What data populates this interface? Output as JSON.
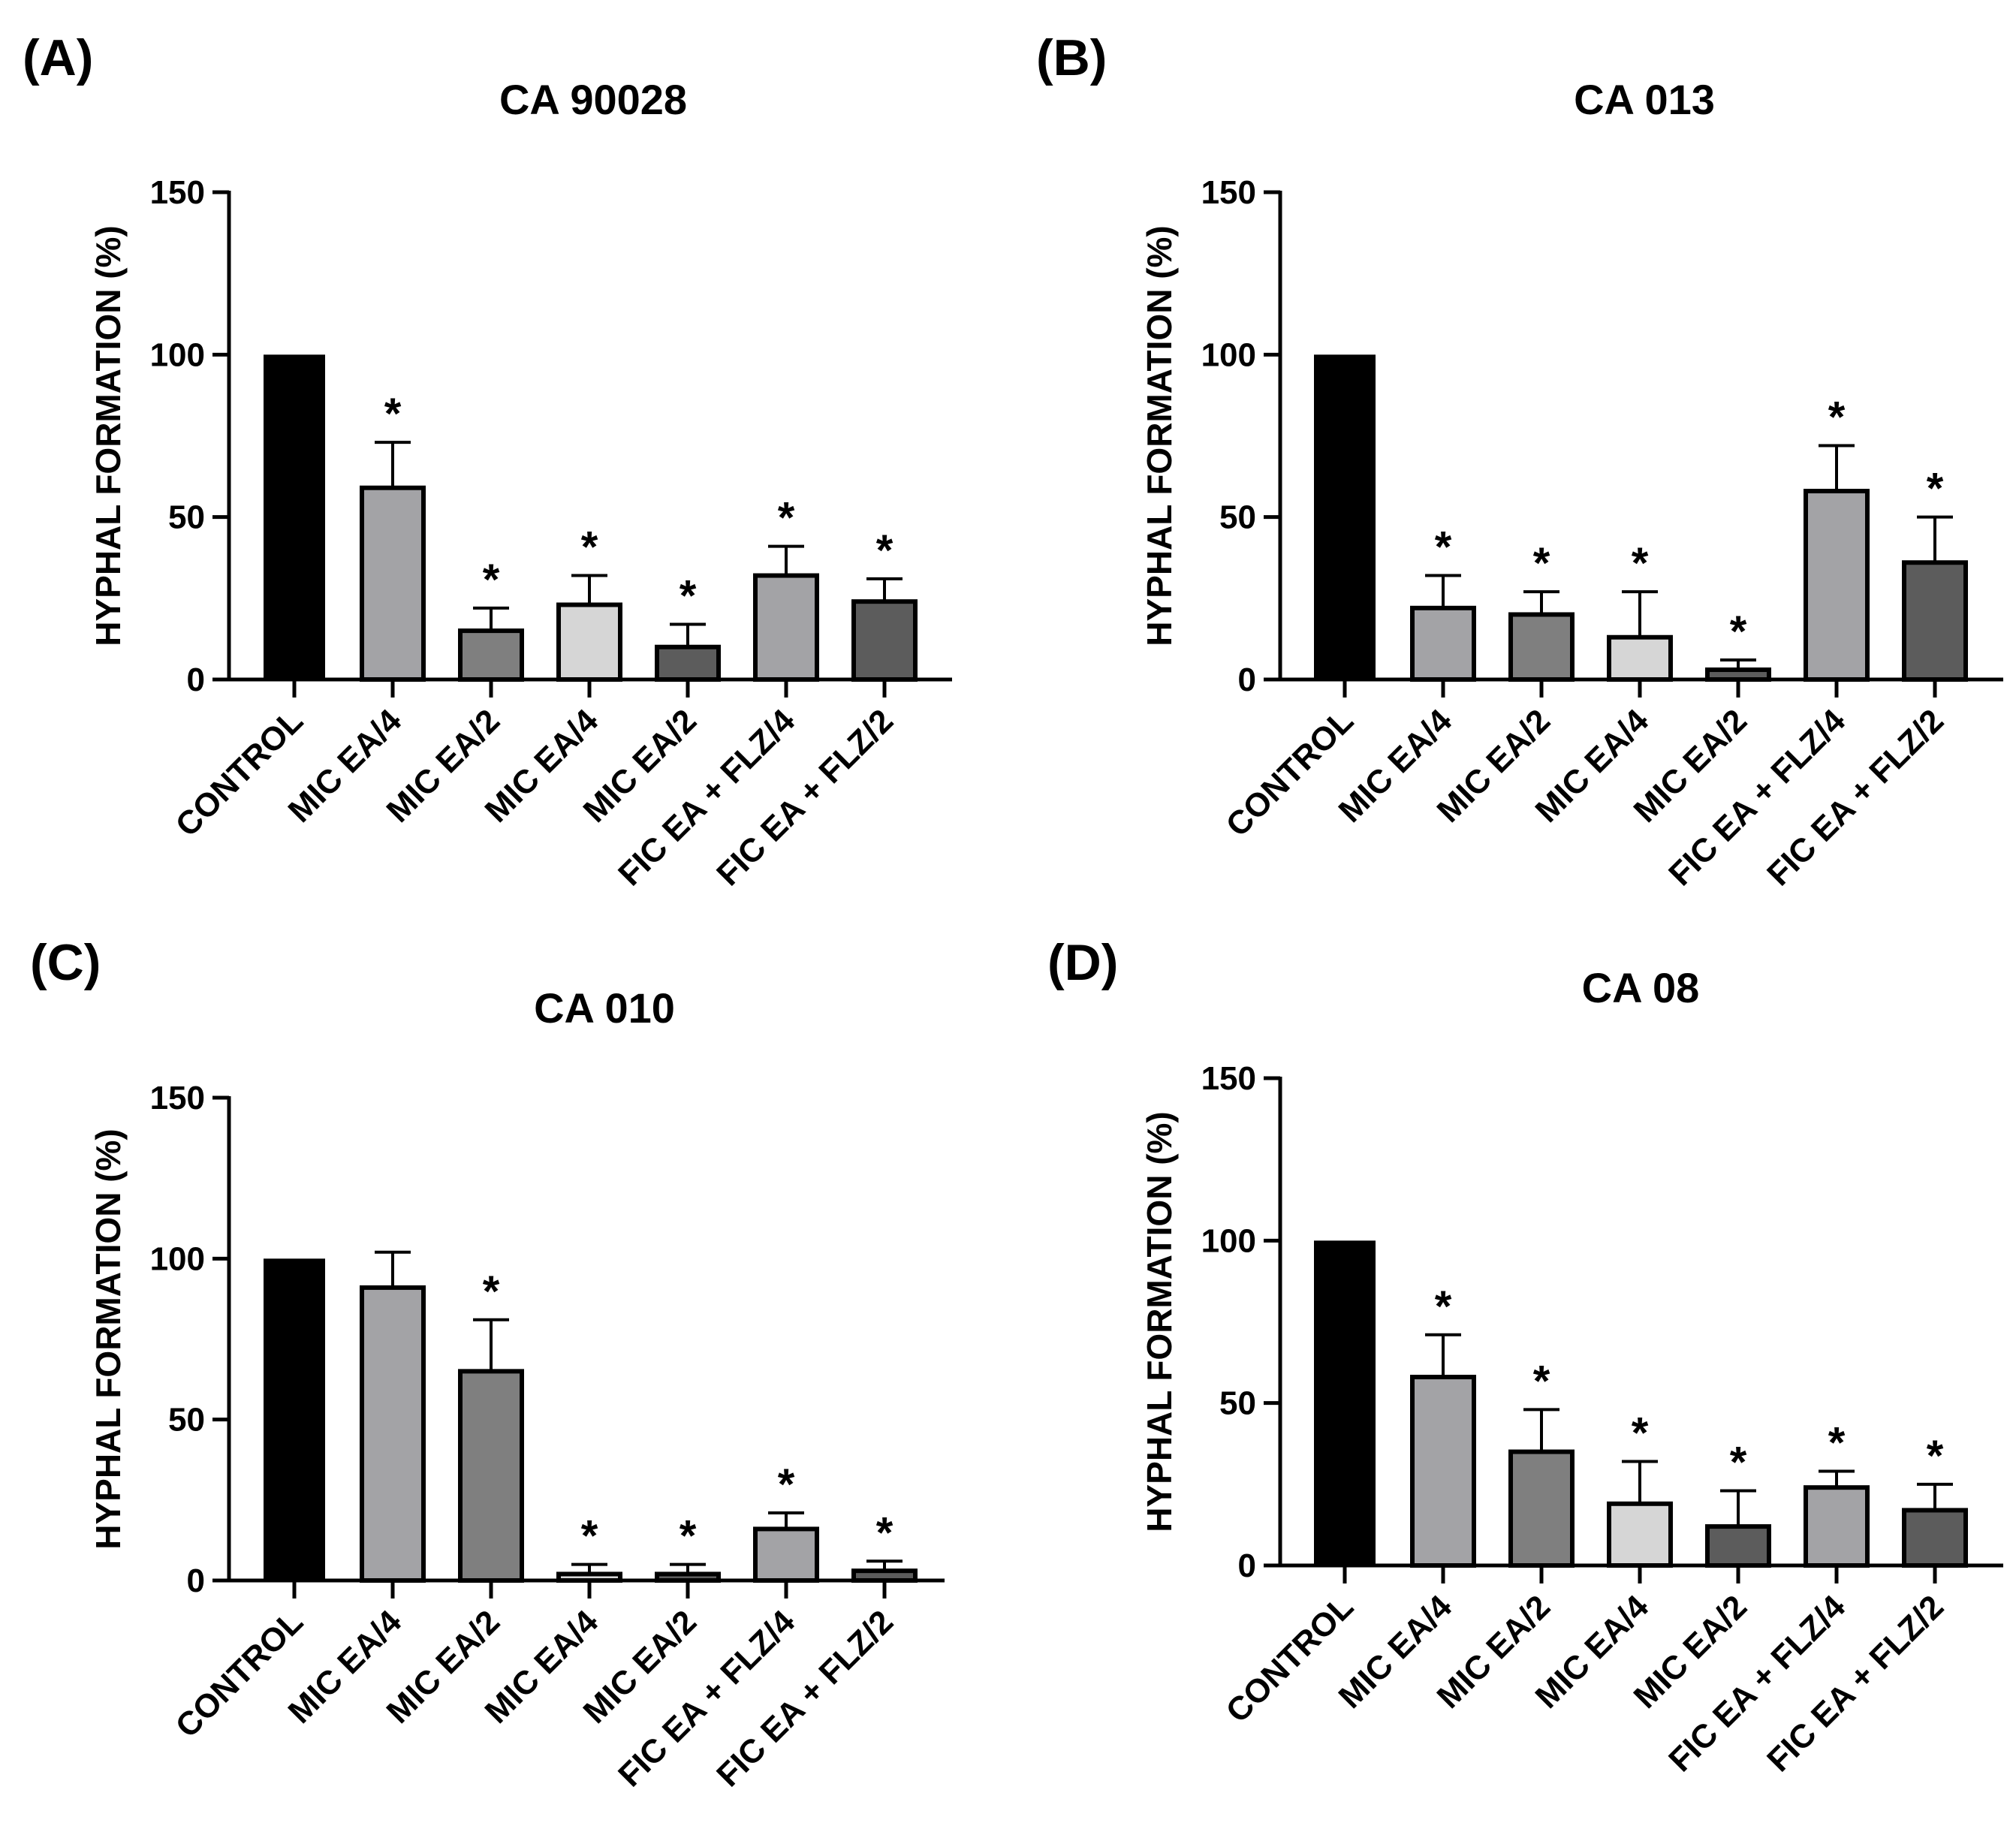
{
  "figure": {
    "colors": {
      "CONTROL": "#000000",
      "MIC EA/4 (1)": "#a3a3a6",
      "MIC EA/2 (1)": "#7f7f7f",
      "MIC EA/4 (2)": "#d6d6d6",
      "MIC EA/2 (2)": "#5c5c5c",
      "FIC EA + FLZ/4": "#a3a3a6",
      "FIC EA + FLZ/2": "#5c5c5c"
    }
  },
  "chart_data": [
    {
      "panel": "(A)",
      "type": "bar",
      "title": "CA 90028",
      "xlabel": "",
      "ylabel": "HYPHAL FORMATION (%)",
      "ylim": [
        0,
        150
      ],
      "yticks": [
        0,
        50,
        100,
        150
      ],
      "categories": [
        "CONTROL",
        "MIC EA/4",
        "MIC EA/2",
        "MIC EA/4",
        "MIC EA/2",
        "FIC EA + FLZ/4",
        "FIC EA + FLZ/2"
      ],
      "values": [
        100,
        59,
        15,
        23,
        10,
        32,
        24
      ],
      "errors": [
        0,
        14,
        7,
        9,
        7,
        9,
        7
      ],
      "significance": [
        "",
        "*",
        "*",
        "*",
        "*",
        "*",
        "*"
      ]
    },
    {
      "panel": "(B)",
      "type": "bar",
      "title": "CA 013",
      "xlabel": "",
      "ylabel": "HYPHAL FORMATION (%)",
      "ylim": [
        0,
        150
      ],
      "yticks": [
        0,
        50,
        100,
        150
      ],
      "categories": [
        "CONTROL",
        "MIC EA/4",
        "MIC EA/2",
        "MIC EA/4",
        "MIC EA/2",
        "FIC EA + FLZ/4",
        "FIC EA + FLZ/2"
      ],
      "values": [
        100,
        22,
        20,
        13,
        3,
        58,
        36
      ],
      "errors": [
        0,
        10,
        7,
        14,
        3,
        14,
        14
      ],
      "significance": [
        "",
        "*",
        "*",
        "*",
        "*",
        "*",
        "*"
      ]
    },
    {
      "panel": "(C)",
      "type": "bar",
      "title": "CA 010",
      "xlabel": "",
      "ylabel": "HYPHAL FORMATION (%)",
      "ylim": [
        0,
        150
      ],
      "yticks": [
        0,
        50,
        100,
        150
      ],
      "categories": [
        "CONTROL",
        "MIC EA/4",
        "MIC EA/2",
        "MIC EA/4",
        "MIC EA/2",
        "FIC EA + FLZ/4",
        "FIC EA + FLZ/2"
      ],
      "values": [
        100,
        91,
        65,
        2,
        2,
        16,
        3
      ],
      "errors": [
        0,
        11,
        16,
        3,
        3,
        5,
        3
      ],
      "significance": [
        "",
        "",
        "*",
        "*",
        "*",
        "*",
        "*"
      ]
    },
    {
      "panel": "(D)",
      "type": "bar",
      "title": "CA 08",
      "xlabel": "",
      "ylabel": "HYPHAL FORMATION (%)",
      "ylim": [
        0,
        150
      ],
      "yticks": [
        0,
        50,
        100,
        150
      ],
      "categories": [
        "CONTROL",
        "MIC EA/4",
        "MIC EA/2",
        "MIC EA/4",
        "MIC EA/2",
        "FIC EA + FLZ/4",
        "FIC EA + FLZ/2"
      ],
      "values": [
        100,
        58,
        35,
        19,
        12,
        24,
        17
      ],
      "errors": [
        0,
        13,
        13,
        13,
        11,
        5,
        8
      ],
      "significance": [
        "",
        "*",
        "*",
        "*",
        "*",
        "*",
        "*"
      ]
    }
  ]
}
